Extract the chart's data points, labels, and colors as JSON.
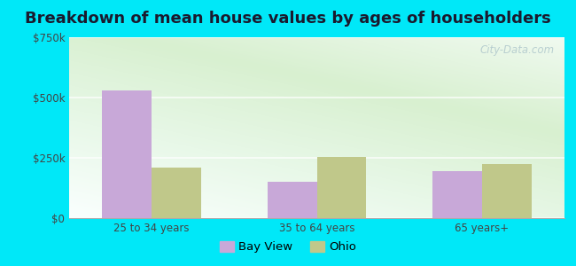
{
  "title": "Breakdown of mean house values by ages of householders",
  "categories": [
    "25 to 34 years",
    "35 to 64 years",
    "65 years+"
  ],
  "bay_view_values": [
    530000,
    150000,
    195000
  ],
  "ohio_values": [
    210000,
    255000,
    225000
  ],
  "ylim": [
    0,
    750000
  ],
  "ytick_labels": [
    "$0",
    "$250k",
    "$500k",
    "$750k"
  ],
  "ytick_values": [
    0,
    250000,
    500000,
    750000
  ],
  "bar_width": 0.3,
  "bay_view_color": "#c8a8d8",
  "ohio_color": "#c0c88a",
  "background_outer": "#00e8f8",
  "legend_bay_view": "Bay View",
  "legend_ohio": "Ohio",
  "title_fontsize": 13,
  "tick_fontsize": 8.5,
  "legend_fontsize": 9.5,
  "watermark": "City-Data.com"
}
